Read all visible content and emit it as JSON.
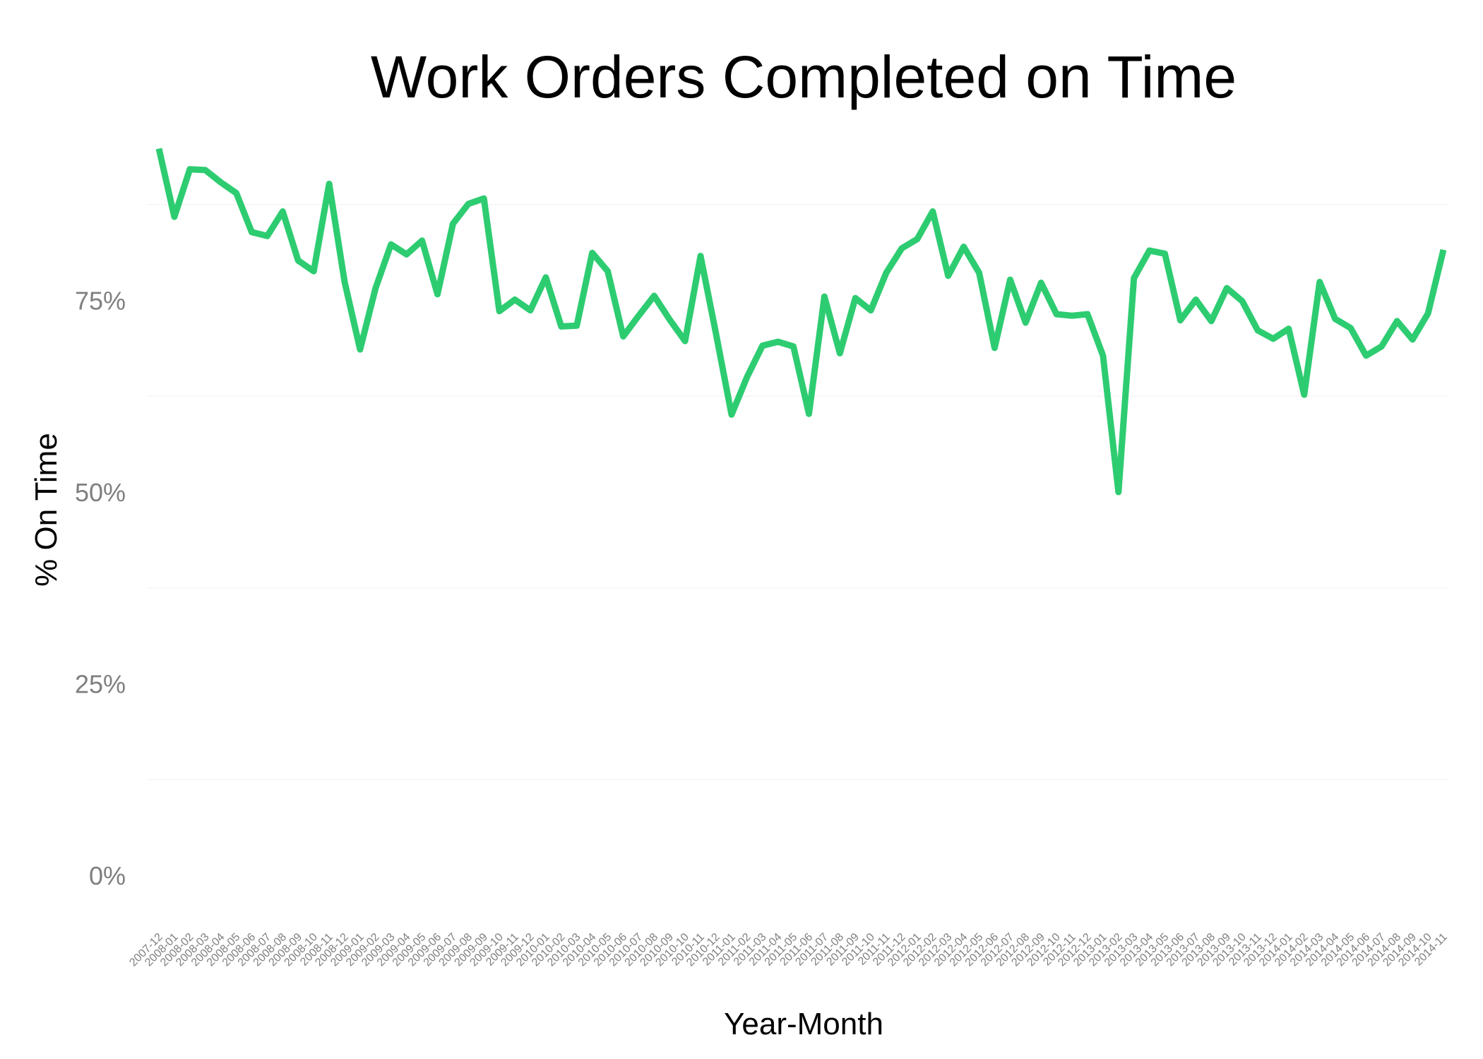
{
  "chart_data": {
    "type": "line",
    "title": "Work Orders Completed on Time",
    "xlabel": "Year-Month",
    "ylabel": "% On Time",
    "ylim": [
      -0.09,
      0.95
    ],
    "yticks": [
      0,
      0.25,
      0.5,
      0.75
    ],
    "ytick_labels": [
      "0%",
      "25%",
      "50%",
      "75%"
    ],
    "grid": true,
    "legend": "none",
    "line_color": "#2ecc71",
    "x": [
      "2007-12",
      "2008-01",
      "2008-02",
      "2008-03",
      "2008-04",
      "2008-05",
      "2008-06",
      "2008-07",
      "2008-08",
      "2008-09",
      "2008-10",
      "2008-11",
      "2008-12",
      "2009-01",
      "2009-02",
      "2009-03",
      "2009-04",
      "2009-05",
      "2009-06",
      "2009-07",
      "2009-08",
      "2009-09",
      "2009-10",
      "2009-11",
      "2009-12",
      "2010-01",
      "2010-02",
      "2010-03",
      "2010-04",
      "2010-05",
      "2010-06",
      "2010-07",
      "2010-08",
      "2010-09",
      "2010-10",
      "2010-11",
      "2010-12",
      "2011-01",
      "2011-02",
      "2011-03",
      "2011-04",
      "2011-05",
      "2011-06",
      "2011-07",
      "2011-08",
      "2011-09",
      "2011-10",
      "2011-11",
      "2011-12",
      "2012-01",
      "2012-02",
      "2012-03",
      "2012-04",
      "2012-05",
      "2012-06",
      "2012-07",
      "2012-08",
      "2012-09",
      "2012-10",
      "2012-11",
      "2012-12",
      "2013-01",
      "2013-02",
      "2013-03",
      "2013-04",
      "2013-05",
      "2013-06",
      "2013-07",
      "2013-08",
      "2013-09",
      "2013-10",
      "2013-11",
      "2013-12",
      "2014-01",
      "2014-02",
      "2014-03",
      "2014-04",
      "2014-05",
      "2014-06",
      "2014-07",
      "2014-08",
      "2014-09",
      "2014-10",
      "2014-11"
    ],
    "series": [
      {
        "values": [
          0.948,
          0.859,
          0.921,
          0.92,
          0.904,
          0.89,
          0.839,
          0.834,
          0.866,
          0.802,
          0.788,
          0.902,
          0.774,
          0.686,
          0.766,
          0.823,
          0.81,
          0.828,
          0.758,
          0.85,
          0.876,
          0.883,
          0.736,
          0.751,
          0.737,
          0.78,
          0.716,
          0.717,
          0.812,
          0.788,
          0.703,
          0.73,
          0.756,
          0.725,
          0.697,
          0.808,
          0.706,
          0.601,
          0.65,
          0.691,
          0.696,
          0.69,
          0.602,
          0.755,
          0.681,
          0.753,
          0.737,
          0.786,
          0.818,
          0.83,
          0.866,
          0.782,
          0.82,
          0.786,
          0.688,
          0.777,
          0.721,
          0.773,
          0.732,
          0.73,
          0.732,
          0.678,
          0.5,
          0.779,
          0.815,
          0.811,
          0.724,
          0.751,
          0.723,
          0.766,
          0.749,
          0.711,
          0.7,
          0.713,
          0.627,
          0.774,
          0.726,
          0.714,
          0.678,
          0.69,
          0.723,
          0.699,
          0.733,
          0.816
        ]
      }
    ]
  }
}
